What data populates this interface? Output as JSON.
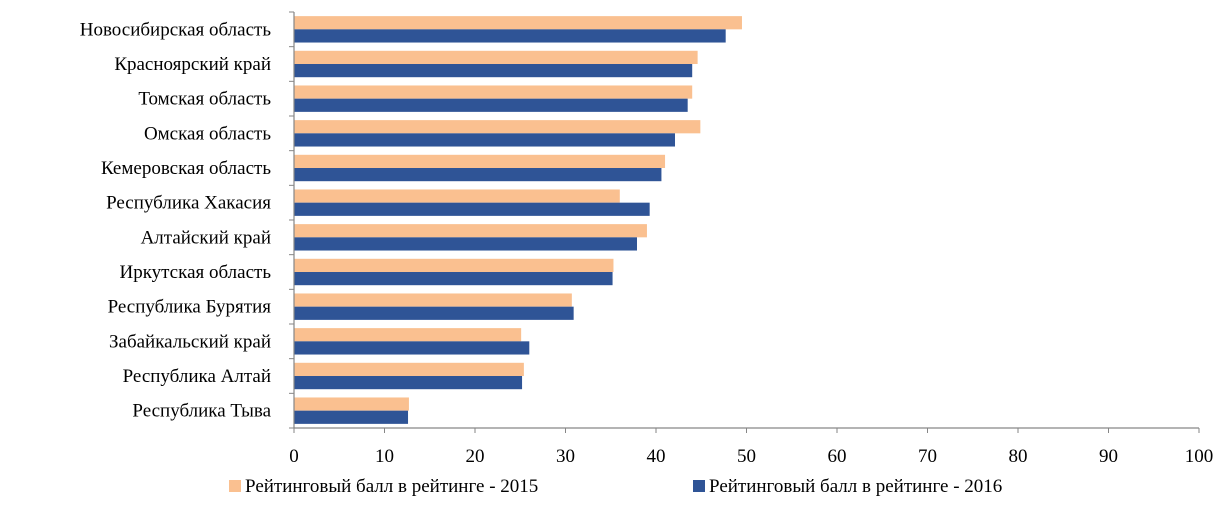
{
  "chart_data": {
    "type": "bar",
    "orientation": "horizontal",
    "categories": [
      "Новосибирская область",
      "Красноярский край",
      "Томская область",
      "Омская область",
      "Кемеровская область",
      "Республика Хакасия",
      "Алтайский край",
      "Иркутская область",
      "Республика Бурятия",
      "Забайкальский край",
      "Республика Алтай",
      "Республика Тыва"
    ],
    "series": [
      {
        "name": "Рейтинговый балл в рейтинге - 2015",
        "color": "#FAC090",
        "values": [
          49.5,
          44.6,
          44.0,
          44.9,
          41.0,
          36.0,
          39.0,
          35.3,
          30.7,
          25.1,
          25.4,
          12.7
        ]
      },
      {
        "name": "Рейтинговый балл в рейтинге - 2016",
        "color": "#2F5496",
        "values": [
          47.7,
          44.0,
          43.5,
          42.1,
          40.6,
          39.3,
          37.9,
          35.2,
          30.9,
          26.0,
          25.2,
          12.6
        ]
      }
    ],
    "xlim": [
      0,
      100
    ],
    "xticks": [
      "0",
      "10",
      "20",
      "30",
      "40",
      "50",
      "60",
      "70",
      "80",
      "90",
      "100"
    ],
    "title": "",
    "xlabel": "",
    "ylabel": "",
    "grid": false,
    "legend_position": "bottom"
  }
}
